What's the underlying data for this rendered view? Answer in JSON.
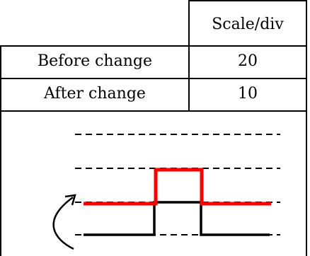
{
  "table": {
    "header": {
      "label_column": "",
      "value_column": "Scale/div"
    },
    "rows": [
      {
        "label": "Before change",
        "value": "20"
      },
      {
        "label": "After change",
        "value": "10"
      }
    ]
  },
  "diagram": {
    "colors": {
      "before_signal": "#ff0000",
      "after_signal": "#000000",
      "gridline": "#000000",
      "arrow": "#000000"
    },
    "icon": "curved-arrow-icon"
  }
}
